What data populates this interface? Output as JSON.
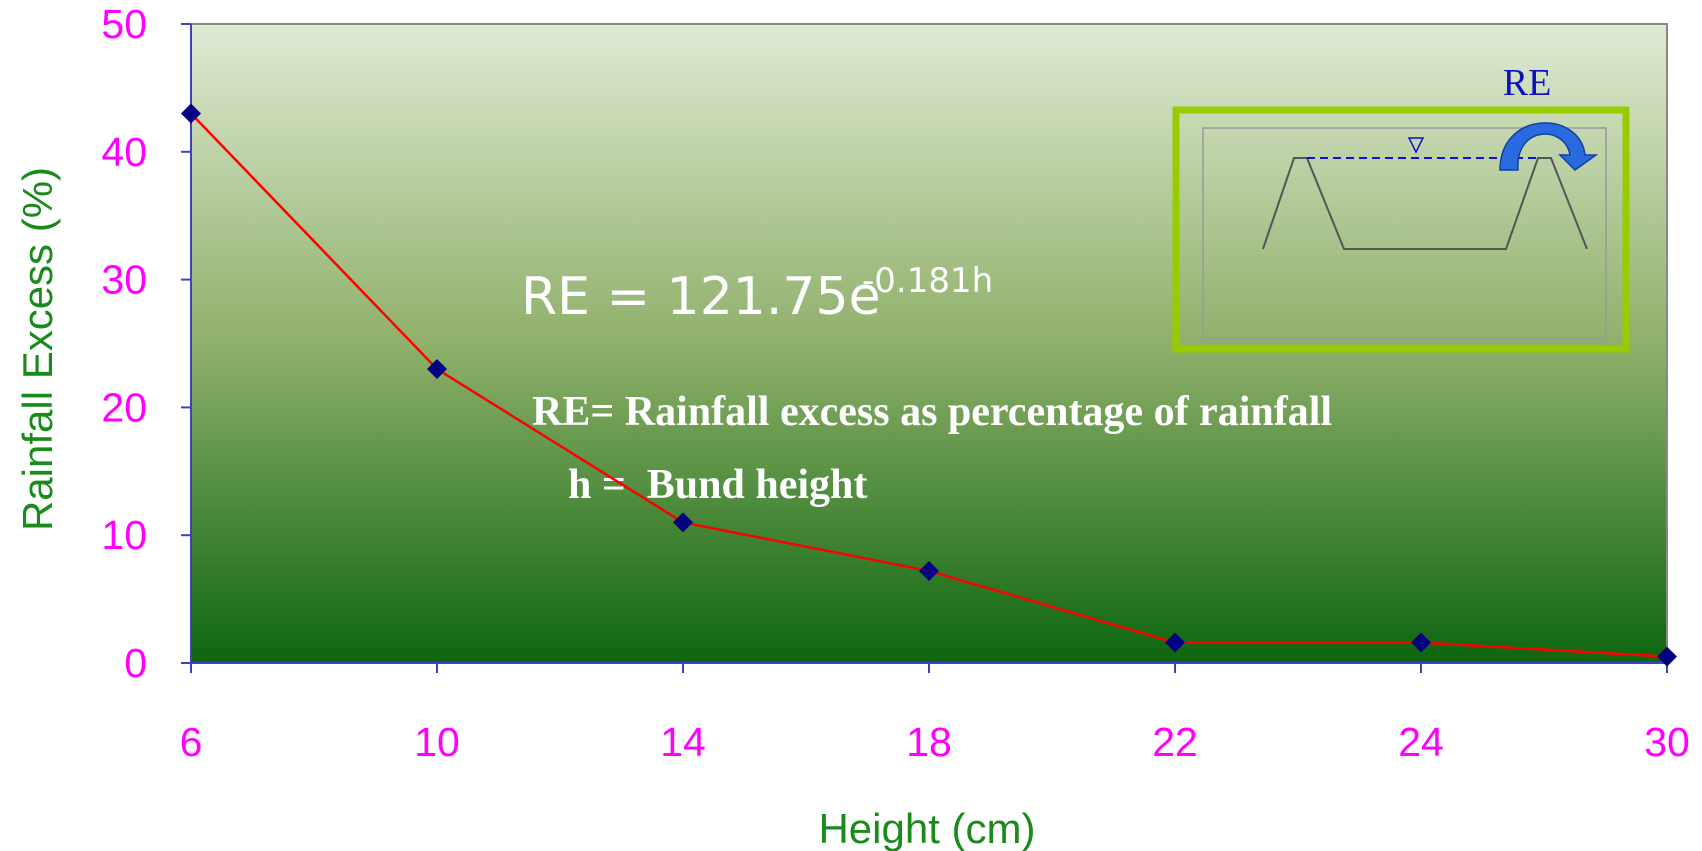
{
  "chart_data": {
    "type": "line",
    "x_label": "Height (cm)",
    "y_label": "Rainfall Excess (%)",
    "categories": [
      "6",
      "10",
      "14",
      "18",
      "22",
      "24",
      "30"
    ],
    "series": [
      {
        "name": "Rainfall Excess",
        "color": "#ff0000",
        "marker_color": "#000080",
        "values": [
          43,
          23,
          11,
          7.2,
          1.6,
          1.6,
          0.5
        ]
      }
    ],
    "ylim": [
      0,
      50
    ],
    "yticks": [
      0,
      10,
      20,
      30,
      40,
      50
    ],
    "annotations": {
      "equation": "RE = 121.75e",
      "exponent": "-0.181h",
      "definition_re": "RE= Rainfall excess as percentage of rainfall",
      "definition_h": "h =  Bund height",
      "inset_label": "RE"
    }
  }
}
